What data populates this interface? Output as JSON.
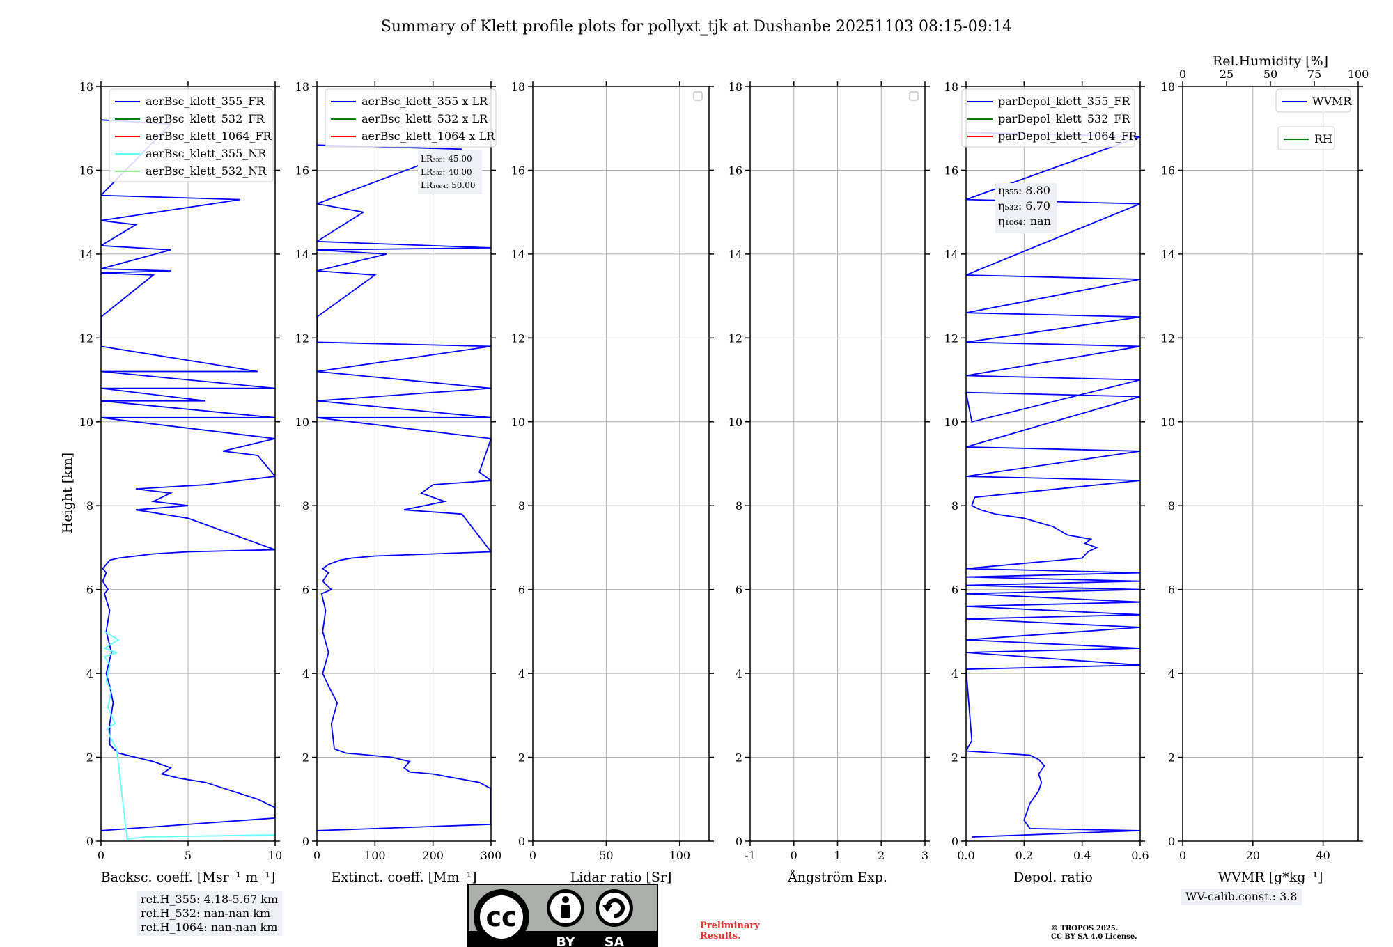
{
  "figure": {
    "title": "Summary of Klett profile plots for pollyxt_tjk at Dushanbe 20251103 08:15-09:14",
    "ylabel": "Height [km]"
  },
  "colors": {
    "blue": "#0000ff",
    "green": "#008000",
    "red": "#ff0000",
    "cyan": "#66ffff",
    "lightgreen": "#90ee90",
    "grid": "#b0b0b0",
    "legend_bg": "#ffffff"
  },
  "notes": {
    "refH": [
      "ref.H_355: 4.18-5.67 km",
      "ref.H_532: nan-nan km",
      "ref.H_1064: nan-nan km"
    ],
    "wv_calib": "WV-calib.const.: 3.8",
    "preliminary": [
      "Preliminary",
      "Results."
    ],
    "copyright": [
      "© TROPOS 2025.",
      "CC BY SA 4.0 License."
    ]
  },
  "license_badge": {
    "cc": "cc",
    "by": "BY",
    "sa": "SA"
  },
  "chart_data": [
    {
      "id": "backscatter",
      "type": "line",
      "xlabel": "Backsc. coeff. [Msr⁻¹ m⁻¹]",
      "xlim": [
        0,
        10
      ],
      "xticks": [
        0,
        5,
        10
      ],
      "ylim": [
        0,
        18
      ],
      "yticks": [
        0,
        2,
        4,
        6,
        8,
        10,
        12,
        14,
        16,
        18
      ],
      "legend": [
        "aerBsc_klett_355_FR",
        "aerBsc_klett_532_FR",
        "aerBsc_klett_1064_FR",
        "aerBsc_klett_355_NR",
        "aerBsc_klett_532_NR"
      ],
      "legend_colors": [
        "blue",
        "green",
        "red",
        "cyan",
        "lightgreen"
      ],
      "series": [
        {
          "name": "aerBsc_klett_355_FR",
          "color": "blue",
          "x": [
            0,
            5,
            10,
            10,
            9,
            7.5,
            6,
            4.5,
            3.5,
            4,
            3,
            2,
            1,
            0.5,
            0.5,
            0.7,
            0.5,
            0.3,
            0.6,
            0.3,
            0.5,
            0.2,
            0.4,
            0.1,
            0.3,
            0.1,
            0.3,
            0.5,
            1,
            3,
            5,
            10,
            5,
            2,
            5,
            3,
            4,
            2,
            6,
            10,
            9,
            7,
            10,
            0,
            10,
            0,
            6,
            0,
            10,
            0,
            9,
            0,
            0,
            3,
            0,
            4,
            0,
            4,
            0,
            2,
            0,
            8,
            0,
            4,
            0
          ],
          "y": [
            0.25,
            0.4,
            0.55,
            0.8,
            1.0,
            1.2,
            1.4,
            1.5,
            1.6,
            1.75,
            1.9,
            2.0,
            2.1,
            2.3,
            2.8,
            3.3,
            3.7,
            4.0,
            4.5,
            5.0,
            5.5,
            5.9,
            6.0,
            6.2,
            6.4,
            6.5,
            6.6,
            6.7,
            6.75,
            6.85,
            6.9,
            6.95,
            7.7,
            7.9,
            8.0,
            8.1,
            8.3,
            8.4,
            8.5,
            8.7,
            9.2,
            9.3,
            9.6,
            10.1,
            10.1,
            10.5,
            10.5,
            10.8,
            10.8,
            11.2,
            11.2,
            11.8,
            12.5,
            13.5,
            13.55,
            13.6,
            13.65,
            14.1,
            14.2,
            14.7,
            14.8,
            15.3,
            15.4,
            17.1,
            17.2
          ]
        },
        {
          "name": "aerBsc_klett_355_NR",
          "color": "cyan",
          "x": [
            10,
            2.5,
            1.5,
            0.9,
            0.5,
            0.4,
            0.8,
            0.4,
            0.6,
            0.3,
            0.5,
            0.2,
            0.9,
            0.2,
            1.0,
            0.2
          ],
          "y": [
            0.15,
            0.1,
            0.05,
            2.2,
            2.5,
            2.7,
            2.8,
            3.2,
            3.6,
            3.8,
            4.2,
            4.4,
            4.5,
            4.6,
            4.8,
            5.0
          ]
        }
      ],
      "annotation": []
    },
    {
      "id": "extinction",
      "type": "line",
      "xlabel": "Extinct. coeff. [Mm⁻¹]",
      "xlim": [
        0,
        300
      ],
      "xticks": [
        0,
        100,
        200,
        300
      ],
      "ylim": [
        0,
        18
      ],
      "yticks": [
        0,
        2,
        4,
        6,
        8,
        10,
        12,
        14,
        16,
        18
      ],
      "legend": [
        "aerBsc_klett_355 x LR",
        "aerBsc_klett_532 x LR",
        "aerBsc_klett_1064 x LR"
      ],
      "legend_colors": [
        "blue",
        "green",
        "red"
      ],
      "annotation": [
        "LR₃₅₅: 45.00",
        "LR₅₃₂: 40.00",
        "LR₁₀₆₄: 50.00"
      ],
      "series": [
        {
          "name": "aerBsc_klett_355 x LR",
          "color": "blue",
          "x": [
            0,
            300,
            300,
            280,
            240,
            200,
            160,
            150,
            160,
            130,
            90,
            50,
            30,
            25,
            35,
            20,
            10,
            20,
            10,
            15,
            8,
            25,
            10,
            20,
            10,
            20,
            40,
            60,
            100,
            200,
            300,
            250,
            150,
            220,
            180,
            200,
            300,
            280,
            300,
            0,
            300,
            0,
            300,
            0,
            300,
            0,
            0,
            100,
            0,
            120,
            0,
            300,
            0,
            80,
            0,
            250,
            0
          ],
          "y": [
            0.25,
            0.4,
            1.25,
            1.4,
            1.5,
            1.6,
            1.65,
            1.75,
            1.9,
            2.0,
            2.05,
            2.1,
            2.2,
            2.8,
            3.3,
            3.7,
            4.0,
            4.5,
            5.0,
            5.5,
            5.9,
            6.0,
            6.2,
            6.4,
            6.5,
            6.6,
            6.7,
            6.75,
            6.8,
            6.85,
            6.9,
            7.8,
            7.9,
            8.1,
            8.3,
            8.5,
            8.6,
            8.8,
            9.6,
            10.1,
            10.1,
            10.5,
            10.8,
            11.2,
            11.8,
            11.9,
            12.5,
            13.5,
            13.6,
            14.0,
            14.1,
            14.15,
            14.3,
            15.0,
            15.2,
            16.5,
            16.6
          ]
        }
      ]
    },
    {
      "id": "lidar_ratio",
      "type": "line",
      "xlabel": "Lidar ratio [Sr]",
      "xlim": [
        0,
        120
      ],
      "xticks": [
        0,
        50,
        100
      ],
      "ylim": [
        0,
        18
      ],
      "yticks": [
        0,
        2,
        4,
        6,
        8,
        10,
        12,
        14,
        16,
        18
      ],
      "legend": [],
      "legend_colors": [],
      "annotation": [],
      "series": []
    },
    {
      "id": "angstrom",
      "type": "line",
      "xlabel": "Ångström Exp.",
      "xlim": [
        -1,
        3
      ],
      "xticks": [
        -1,
        0,
        1,
        2,
        3
      ],
      "ylim": [
        0,
        18
      ],
      "yticks": [
        0,
        2,
        4,
        6,
        8,
        10,
        12,
        14,
        16,
        18
      ],
      "legend": [],
      "legend_colors": [],
      "annotation": [],
      "series": []
    },
    {
      "id": "depol",
      "type": "line",
      "xlabel": "Depol. ratio",
      "xlim": [
        0.0,
        0.6
      ],
      "xticks": [
        0.0,
        0.2,
        0.4,
        0.6
      ],
      "ylim": [
        0,
        18
      ],
      "yticks": [
        0,
        2,
        4,
        6,
        8,
        10,
        12,
        14,
        16,
        18
      ],
      "legend": [
        "parDepol_klett_355_FR",
        "parDepol_klett_532_FR",
        "parDepol_klett_1064_FR"
      ],
      "legend_colors": [
        "blue",
        "green",
        "red"
      ],
      "annotation": [
        "η₃₅₅: 8.80",
        "η₅₃₂: 6.70",
        "η₁₀₆₄: nan"
      ],
      "series": [
        {
          "name": "parDepol_klett_355_FR",
          "color": "blue",
          "x": [
            0.02,
            0.6,
            0.22,
            0.2,
            0.22,
            0.25,
            0.26,
            0.25,
            0.27,
            0.25,
            0.22,
            0.0,
            0.02,
            0.0,
            0.6,
            0.0,
            0.6,
            0.0,
            0.6,
            0.0,
            0.6,
            0.0,
            0.6,
            0.0,
            0.6,
            0.0,
            0.6,
            0.0,
            0.6,
            0.0,
            0.4,
            0.42,
            0.45,
            0.41,
            0.43,
            0.35,
            0.3,
            0.2,
            0.1,
            0.05,
            0.02,
            0.03,
            0.6,
            0.0,
            0.6,
            0.0,
            0.6,
            0.0,
            0.02,
            0.6,
            0.0,
            0.6,
            0.0,
            0.6,
            0.0,
            0.6,
            0.0,
            0.6,
            0.0,
            0.6,
            0.0
          ],
          "y": [
            0.1,
            0.25,
            0.3,
            0.5,
            0.9,
            1.2,
            1.4,
            1.6,
            1.8,
            1.95,
            2.05,
            2.15,
            2.4,
            4.1,
            4.2,
            4.5,
            4.6,
            4.8,
            5.1,
            5.3,
            5.4,
            5.6,
            5.7,
            5.9,
            6.0,
            6.1,
            6.2,
            6.3,
            6.4,
            6.5,
            6.75,
            6.9,
            7.0,
            7.1,
            7.2,
            7.3,
            7.5,
            7.7,
            7.8,
            7.9,
            8.0,
            8.2,
            8.6,
            8.7,
            9.3,
            9.4,
            10.6,
            10.7,
            10.0,
            11.0,
            11.1,
            11.8,
            11.9,
            12.5,
            12.6,
            13.4,
            13.5,
            15.2,
            15.3,
            16.8,
            16.9
          ]
        }
      ]
    },
    {
      "id": "wvmr",
      "type": "line",
      "xlabel": "WVMR [g*kg⁻¹]",
      "xlim": [
        0,
        50
      ],
      "xticks": [
        0,
        20,
        40
      ],
      "x2label": "Rel.Humidity [%]",
      "x2lim": [
        0,
        100
      ],
      "x2ticks": [
        0,
        25,
        50,
        75,
        100
      ],
      "ylim": [
        0,
        18
      ],
      "yticks": [
        0,
        2,
        4,
        6,
        8,
        10,
        12,
        14,
        16,
        18
      ],
      "legend": [
        "WVMR"
      ],
      "legend_colors": [
        "blue"
      ],
      "legend2": [
        "RH"
      ],
      "legend2_colors": [
        "green"
      ],
      "annotation": [],
      "series": []
    }
  ]
}
